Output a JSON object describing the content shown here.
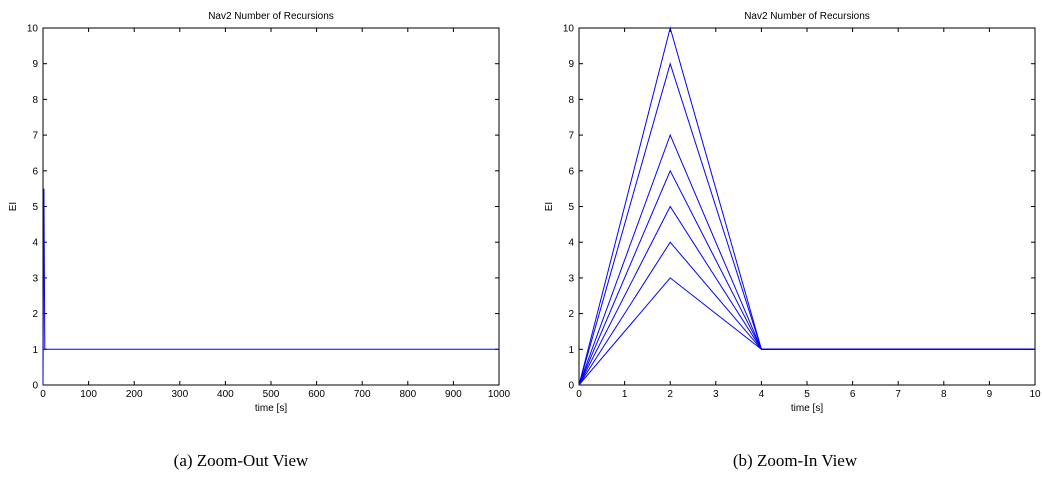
{
  "chart_data": [
    {
      "type": "line",
      "title": "Nav2 Number of Recursions",
      "xlabel": "time [s]",
      "ylabel": "EI",
      "xlim": [
        0,
        1000
      ],
      "ylim": [
        0,
        10
      ],
      "xticks": [
        0,
        100,
        200,
        300,
        400,
        500,
        600,
        700,
        800,
        900,
        1000
      ],
      "yticks": [
        0,
        1,
        2,
        3,
        4,
        5,
        6,
        7,
        8,
        9,
        10
      ],
      "color": "#0000ff",
      "series": [
        {
          "x": [
            0,
            2,
            4,
            1000
          ],
          "y": [
            0,
            5.5,
            1,
            1
          ]
        }
      ],
      "caption": "(a)  Zoom-Out View"
    },
    {
      "type": "line",
      "title": "Nav2 Number of Recursions",
      "xlabel": "time [s]",
      "ylabel": "EI",
      "xlim": [
        0,
        10
      ],
      "ylim": [
        0,
        10
      ],
      "xticks": [
        0,
        1,
        2,
        3,
        4,
        5,
        6,
        7,
        8,
        9,
        10
      ],
      "yticks": [
        0,
        1,
        2,
        3,
        4,
        5,
        6,
        7,
        8,
        9,
        10
      ],
      "color": "#0000ff",
      "series": [
        {
          "x": [
            0,
            2,
            4,
            10
          ],
          "y": [
            0,
            10,
            1,
            1
          ]
        },
        {
          "x": [
            0,
            2,
            4,
            10
          ],
          "y": [
            0,
            9,
            1,
            1
          ]
        },
        {
          "x": [
            0,
            2,
            4,
            10
          ],
          "y": [
            0,
            7,
            1,
            1
          ]
        },
        {
          "x": [
            0,
            2,
            4,
            10
          ],
          "y": [
            0,
            6,
            1,
            1
          ]
        },
        {
          "x": [
            0,
            2,
            4,
            10
          ],
          "y": [
            0,
            5,
            1,
            1
          ]
        },
        {
          "x": [
            0,
            2,
            4,
            10
          ],
          "y": [
            0,
            4,
            1,
            1
          ]
        },
        {
          "x": [
            0,
            2,
            4,
            10
          ],
          "y": [
            0,
            3,
            1,
            1
          ]
        }
      ],
      "caption": "(b)  Zoom-In View"
    }
  ]
}
